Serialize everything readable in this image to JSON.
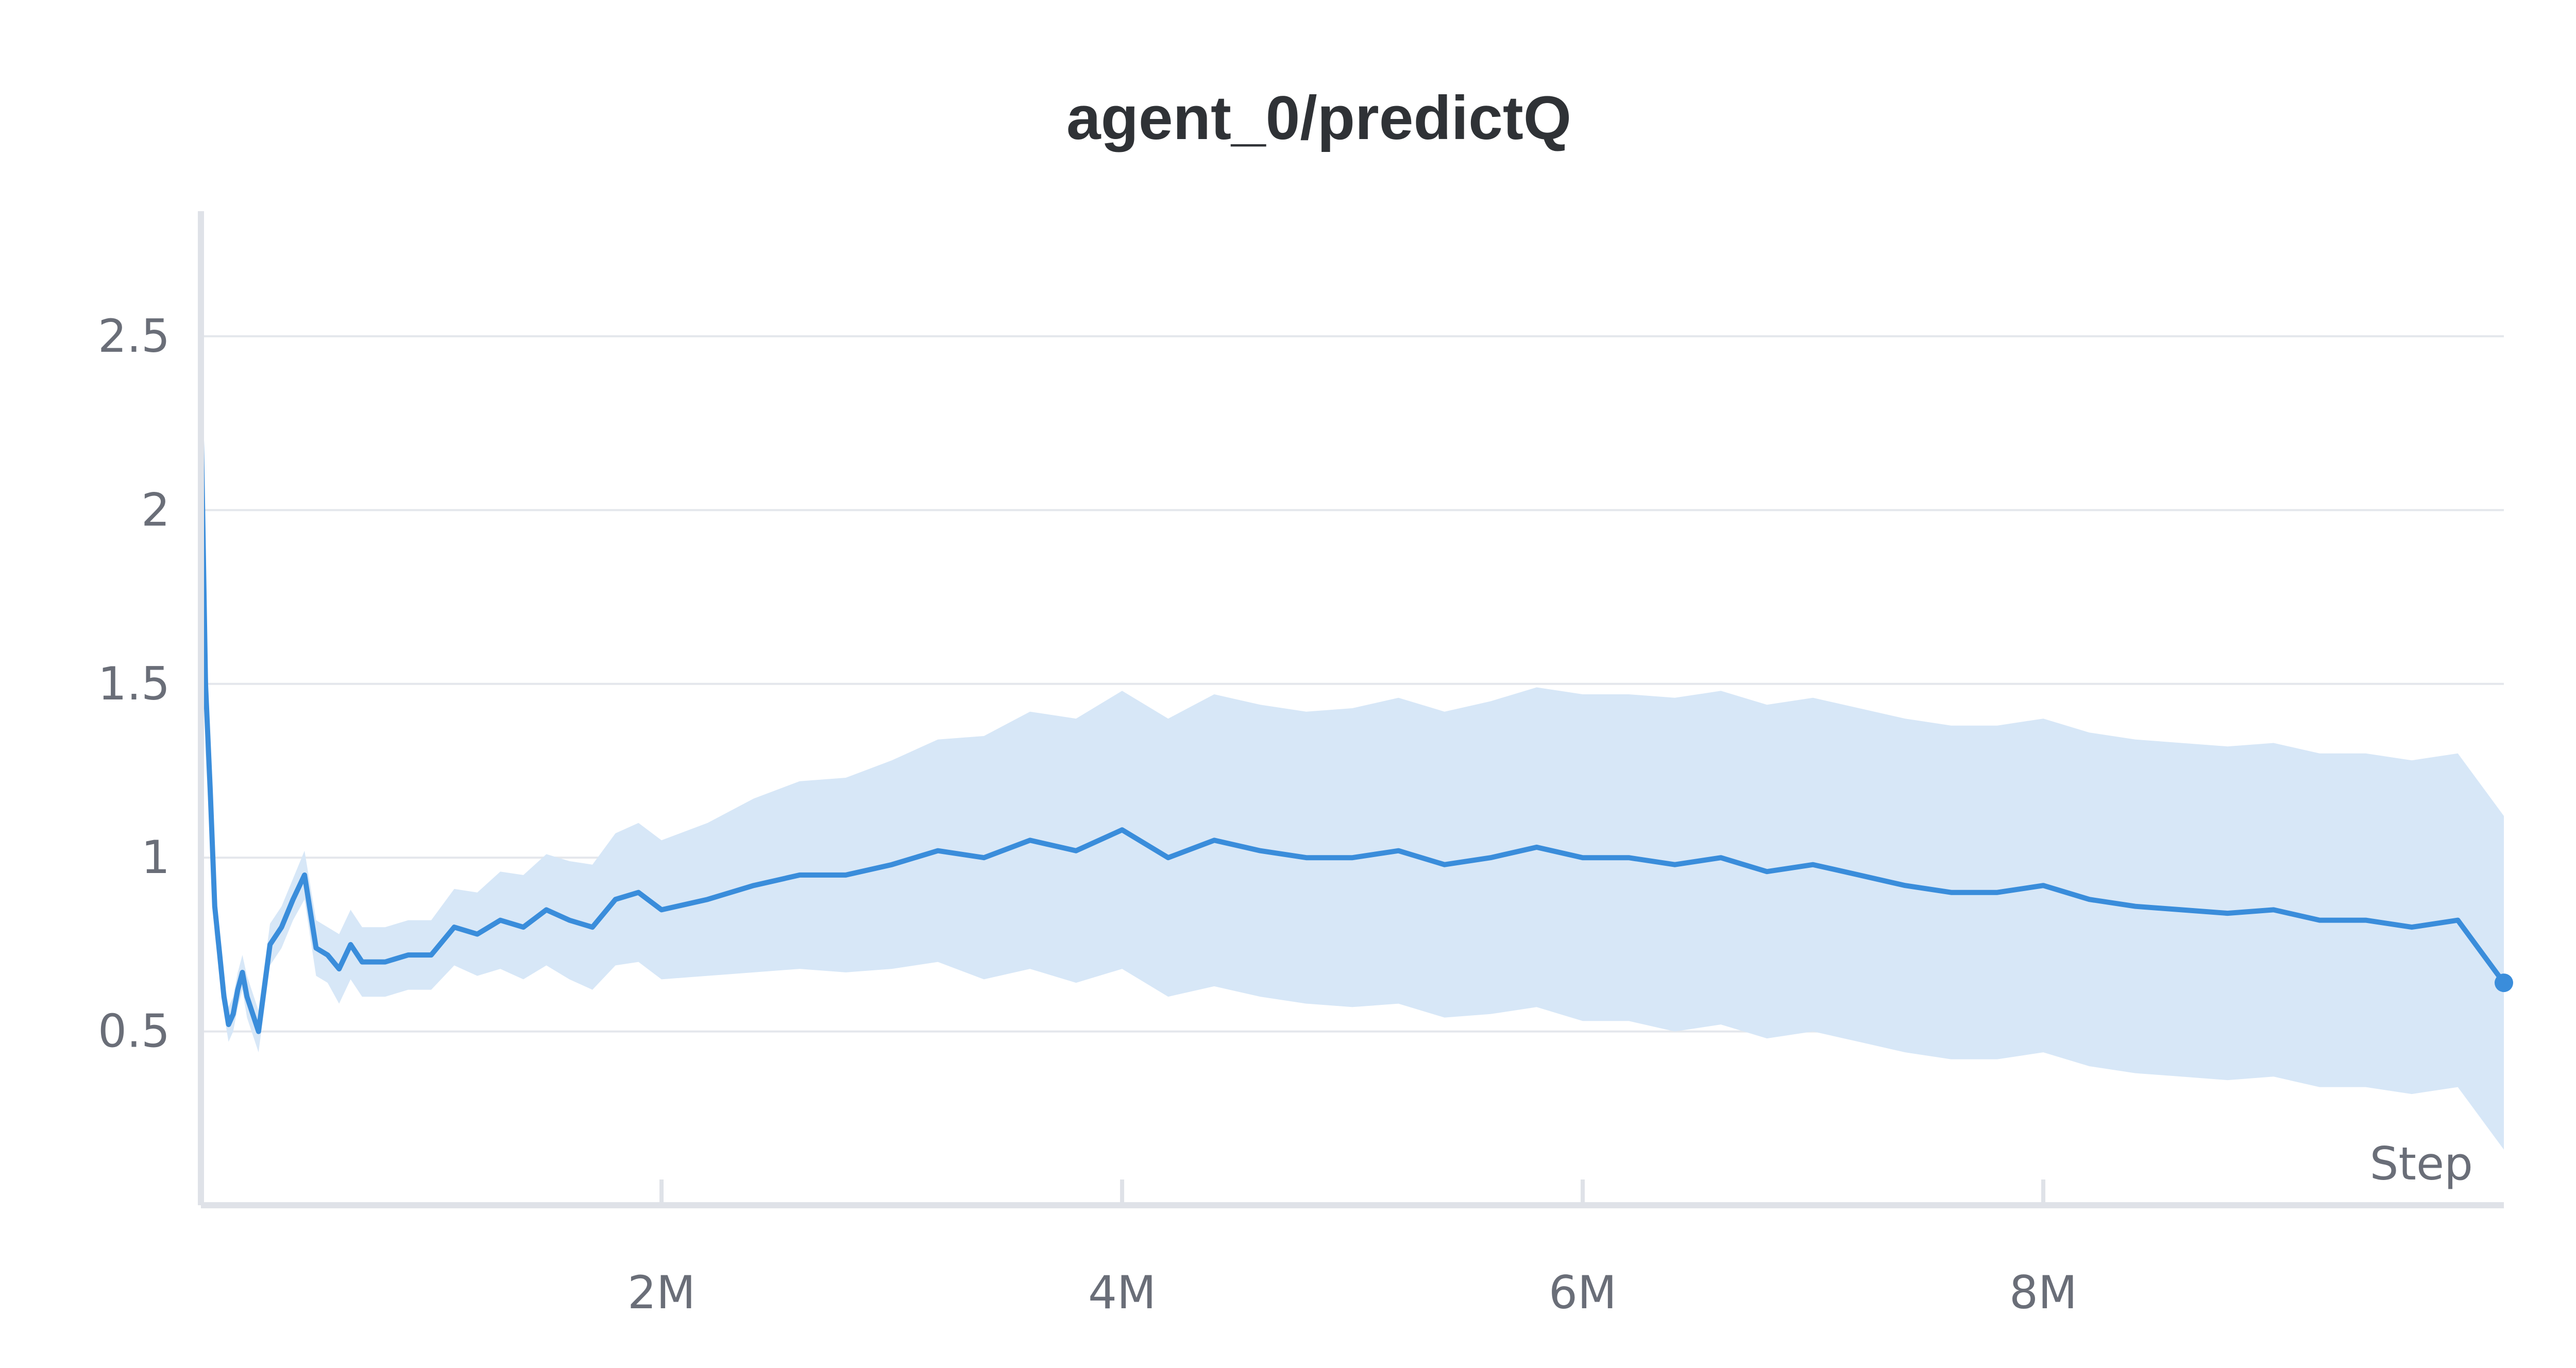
{
  "chart_data": {
    "type": "line",
    "title": "agent_0/predictQ",
    "xlabel": "Step",
    "ylabel": "",
    "xlim": [
      0,
      10000000
    ],
    "ylim": [
      0,
      2.86
    ],
    "x_ticks": [
      {
        "value": 2000000,
        "label": "2M"
      },
      {
        "value": 4000000,
        "label": "4M"
      },
      {
        "value": 6000000,
        "label": "6M"
      },
      {
        "value": 8000000,
        "label": "8M"
      }
    ],
    "y_ticks": [
      {
        "value": 0.5,
        "label": "0.5"
      },
      {
        "value": 1,
        "label": "1"
      },
      {
        "value": 1.5,
        "label": "1.5"
      },
      {
        "value": 2,
        "label": "2"
      },
      {
        "value": 2.5,
        "label": "2.5"
      }
    ],
    "grid": true,
    "legend": "none",
    "colors": {
      "line": "#3a8ddb",
      "band": "#d7e7f7",
      "grid": "#e4e7ec",
      "axis": "#dfe2e8"
    },
    "series": [
      {
        "x": [
          0,
          20000,
          40000,
          60000,
          80000,
          100000,
          120000,
          140000,
          160000,
          180000,
          200000,
          250000,
          300000,
          350000,
          400000,
          450000,
          500000,
          550000,
          600000,
          650000,
          700000,
          800000,
          900000,
          1000000,
          1100000,
          1200000,
          1300000,
          1400000,
          1500000,
          1600000,
          1700000,
          1800000,
          1900000,
          2000000,
          2200000,
          2400000,
          2600000,
          2800000,
          3000000,
          3200000,
          3400000,
          3600000,
          3800000,
          4000000,
          4200000,
          4400000,
          4600000,
          4800000,
          5000000,
          5200000,
          5400000,
          5600000,
          5800000,
          6000000,
          6200000,
          6400000,
          6600000,
          6800000,
          7000000,
          7200000,
          7400000,
          7600000,
          7800000,
          8000000,
          8200000,
          8400000,
          8600000,
          8800000,
          9000000,
          9200000,
          9400000,
          9600000,
          9800000,
          10000000
        ],
        "y": [
          2.29,
          1.5,
          1.2,
          0.86,
          0.73,
          0.6,
          0.52,
          0.55,
          0.62,
          0.67,
          0.6,
          0.5,
          0.75,
          0.8,
          0.88,
          0.95,
          0.74,
          0.72,
          0.68,
          0.75,
          0.7,
          0.7,
          0.72,
          0.72,
          0.8,
          0.78,
          0.82,
          0.8,
          0.85,
          0.82,
          0.8,
          0.88,
          0.9,
          0.85,
          0.88,
          0.92,
          0.95,
          0.95,
          0.98,
          1.02,
          1.0,
          1.05,
          1.02,
          1.08,
          1.0,
          1.05,
          1.02,
          1.0,
          1.0,
          1.02,
          0.98,
          1.0,
          1.03,
          1.0,
          1.0,
          0.98,
          1.0,
          0.96,
          0.98,
          0.95,
          0.92,
          0.9,
          0.9,
          0.92,
          0.88,
          0.86,
          0.85,
          0.84,
          0.85,
          0.82,
          0.82,
          0.8,
          0.82,
          0.64
        ],
        "spread": [
          0.05,
          0.2,
          0.15,
          0.08,
          0.06,
          0.05,
          0.05,
          0.05,
          0.05,
          0.05,
          0.06,
          0.06,
          0.06,
          0.06,
          0.06,
          0.07,
          0.08,
          0.08,
          0.1,
          0.1,
          0.1,
          0.1,
          0.1,
          0.1,
          0.11,
          0.12,
          0.14,
          0.15,
          0.16,
          0.17,
          0.18,
          0.19,
          0.2,
          0.2,
          0.22,
          0.25,
          0.27,
          0.28,
          0.3,
          0.32,
          0.35,
          0.37,
          0.38,
          0.4,
          0.4,
          0.42,
          0.42,
          0.42,
          0.43,
          0.44,
          0.44,
          0.45,
          0.46,
          0.47,
          0.47,
          0.48,
          0.48,
          0.48,
          0.48,
          0.48,
          0.48,
          0.48,
          0.48,
          0.48,
          0.48,
          0.48,
          0.48,
          0.48,
          0.48,
          0.48,
          0.48,
          0.48,
          0.48,
          0.48
        ]
      }
    ],
    "end_marker": {
      "x": 10000000,
      "y": 0.64
    }
  }
}
